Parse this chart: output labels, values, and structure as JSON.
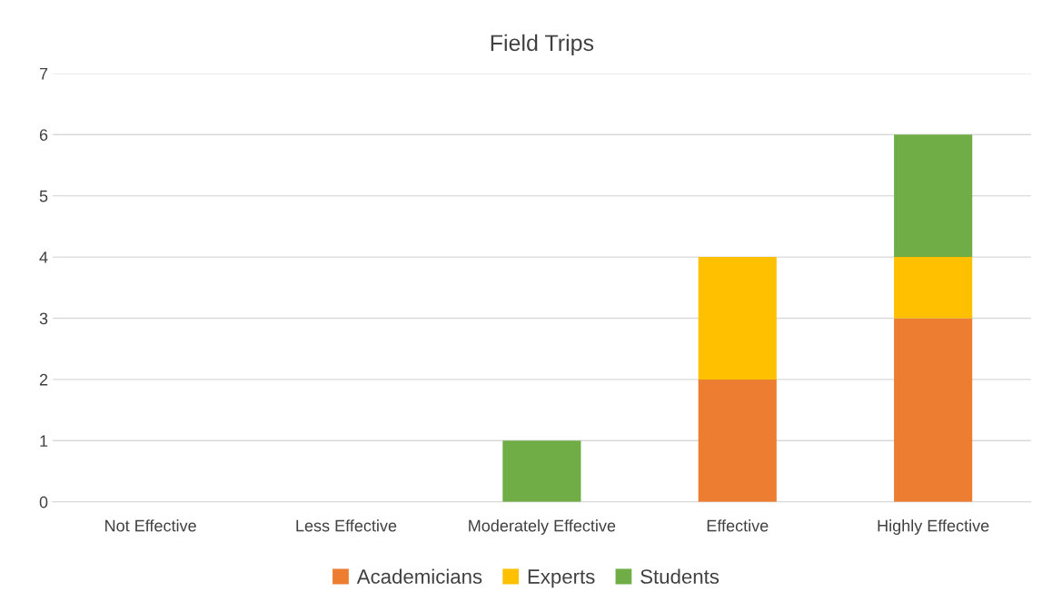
{
  "chart_data": {
    "type": "bar",
    "title": "Field Trips",
    "categories": [
      "Not Effective",
      "Less Effective",
      "Moderately Effective",
      "Effective",
      "Highly Effective"
    ],
    "series": [
      {
        "name": "Academicians",
        "color": "#ed7d31",
        "values": [
          0,
          0,
          0,
          2,
          3
        ]
      },
      {
        "name": "Experts",
        "color": "#ffc000",
        "values": [
          0,
          0,
          0,
          2,
          1
        ]
      },
      {
        "name": "Students",
        "color": "#70ad47",
        "values": [
          0,
          0,
          1,
          0,
          2
        ]
      }
    ],
    "stacked": true,
    "ylim": [
      0,
      7
    ],
    "yticks": [
      0,
      1,
      2,
      3,
      4,
      5,
      6,
      7
    ],
    "grid": "y",
    "legend": "bottom"
  }
}
